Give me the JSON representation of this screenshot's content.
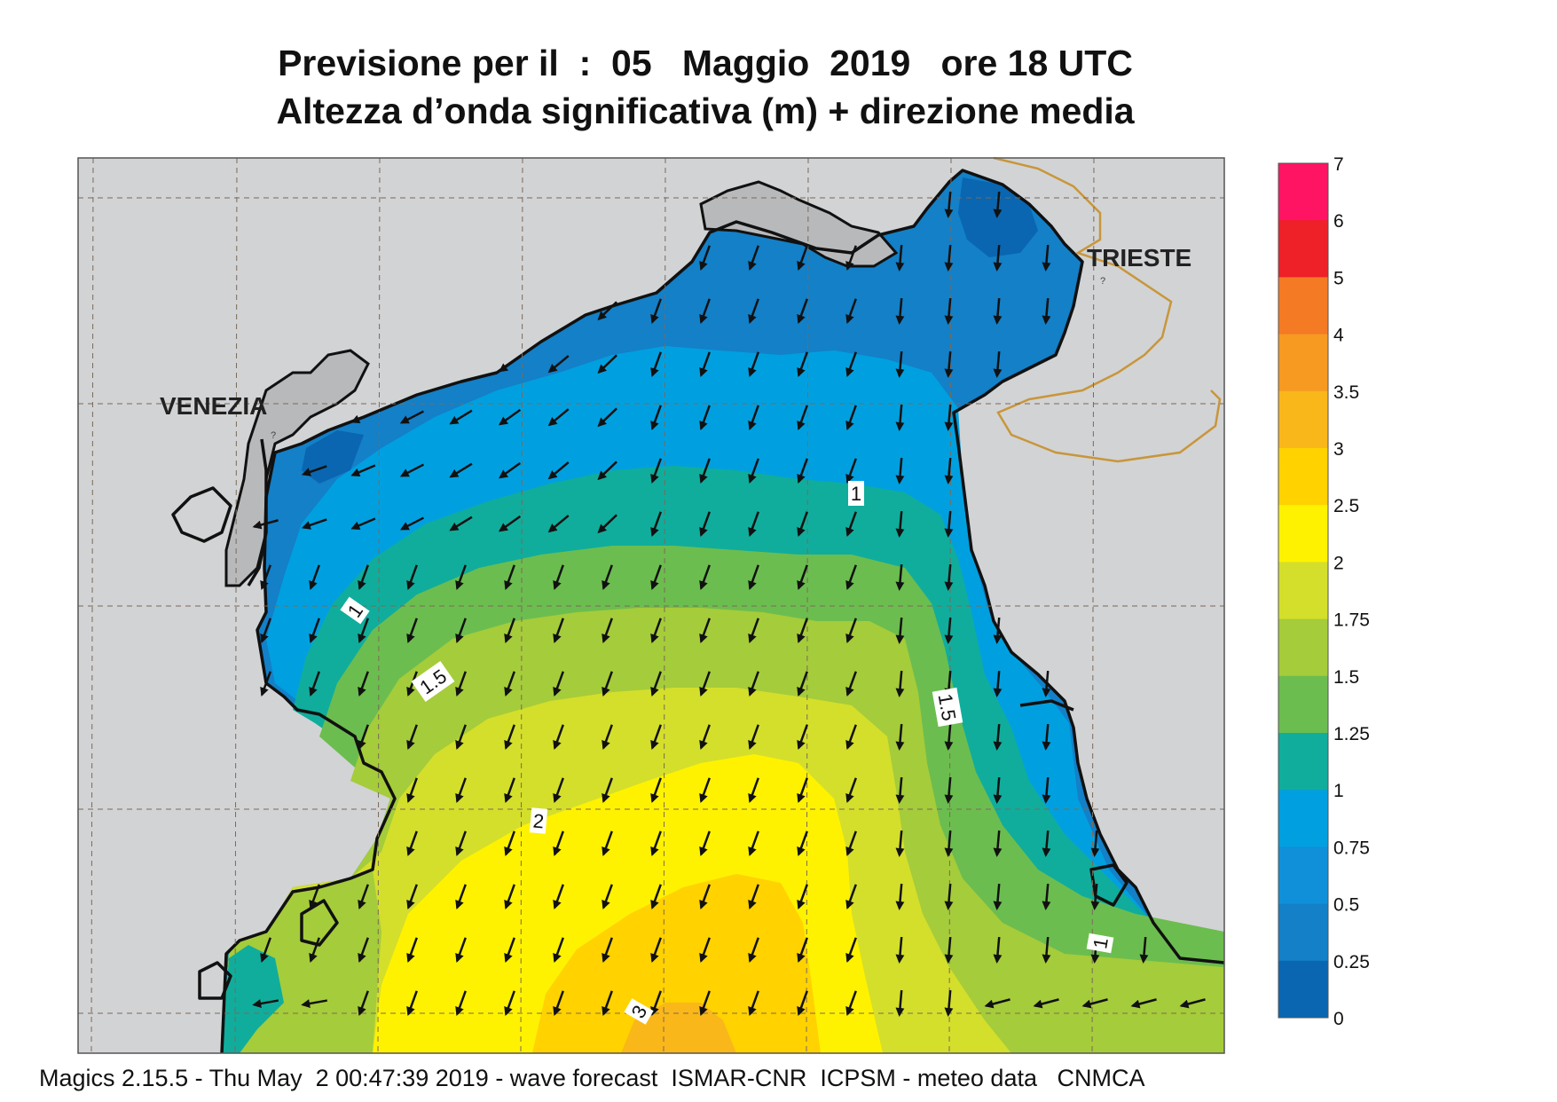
{
  "title": {
    "line1": "Previsione per il  :  05   Maggio  2019   ore 18 UTC",
    "line2": "Altezza d’onda significativa (m) + direzione media"
  },
  "map": {
    "cities": [
      {
        "name": "VENEZIA"
      },
      {
        "name": "TRIESTE"
      }
    ],
    "contour_labels": [
      "1",
      "1",
      "1.5",
      "1.5",
      "2",
      "3",
      "1"
    ],
    "arrow_direction": "south-southwest"
  },
  "legend": {
    "labels": [
      "7",
      "6",
      "5",
      "4",
      "3.5",
      "3",
      "2.5",
      "2",
      "1.75",
      "1.5",
      "1.25",
      "1",
      "0.75",
      "0.5",
      "0.25",
      "0"
    ],
    "colors": [
      "#ff1464",
      "#ee2028",
      "#f47a24",
      "#f69a22",
      "#f9b71a",
      "#ffd200",
      "#fff200",
      "#d4df2b",
      "#a5cc3a",
      "#6cbd4f",
      "#10ad9c",
      "#00a0e0",
      "#1090d8",
      "#1380c8",
      "#0a66b0"
    ]
  },
  "footer": "Magics 2.15.5 - Thu May  2 00:47:39 2019 - wave forecast  ISMAR-CNR  ICPSM - meteo data   CNMCA"
}
